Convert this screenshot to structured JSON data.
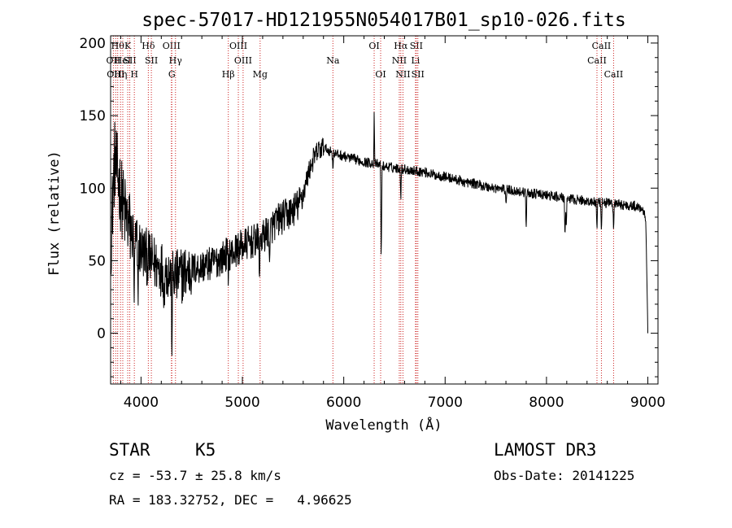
{
  "chart_data": {
    "type": "line",
    "title": "spec-57017-HD121955N054017B01_sp10-026.fits",
    "xlabel": "Wavelength (Å)",
    "ylabel": "Flux (relative)",
    "xlim": [
      3700,
      9100
    ],
    "ylim": [
      -35,
      205
    ],
    "xticks": [
      "4000",
      "5000",
      "6000",
      "7000",
      "8000",
      "9000"
    ],
    "yticks": [
      "0",
      "50",
      "100",
      "150",
      "200"
    ],
    "xtick_values": [
      4000,
      5000,
      6000,
      7000,
      8000,
      9000
    ],
    "ytick_values": [
      0,
      50,
      100,
      150,
      200
    ],
    "line_color": "#000000",
    "marker_color": "#cc2222",
    "continuum": {
      "x": [
        3700,
        3740,
        3780,
        3830,
        3900,
        3950,
        4000,
        4050,
        4100,
        4150,
        4200,
        4250,
        4300,
        4350,
        4400,
        4450,
        4500,
        4550,
        4600,
        4650,
        4700,
        4750,
        4800,
        4850,
        4900,
        4950,
        5000,
        5050,
        5100,
        5150,
        5200,
        5250,
        5300,
        5350,
        5400,
        5450,
        5500,
        5550,
        5600,
        5650,
        5700,
        5750,
        5800,
        5850,
        5900,
        5950,
        6000,
        6100,
        6200,
        6300,
        6400,
        6500,
        6600,
        6700,
        6800,
        6900,
        7000,
        7100,
        7200,
        7300,
        7400,
        7500,
        7600,
        7700,
        7800,
        7900,
        8000,
        8100,
        8200,
        8300,
        8400,
        8500,
        8600,
        8700,
        8800,
        8850,
        8900,
        8950,
        8980,
        9000
      ],
      "y": [
        60,
        120,
        105,
        85,
        70,
        62,
        58,
        53,
        50,
        47,
        45,
        43,
        40,
        38,
        40,
        42,
        44,
        45,
        46,
        47,
        48,
        50,
        52,
        55,
        55,
        58,
        60,
        62,
        63,
        64,
        66,
        70,
        74,
        78,
        80,
        82,
        85,
        88,
        96,
        110,
        120,
        126,
        128,
        126,
        124,
        123,
        122,
        120,
        118,
        117,
        115,
        114,
        113,
        112,
        111,
        109,
        108,
        106,
        104,
        103,
        101,
        100,
        99,
        98,
        97,
        96,
        95,
        94,
        93,
        92,
        91,
        90,
        90,
        89,
        88,
        88,
        87,
        86,
        80,
        0
      ]
    },
    "absorption_features": [
      {
        "x": 3934,
        "depth": 45
      },
      {
        "x": 3969,
        "depth": 40
      },
      {
        "x": 4227,
        "depth": 20
      },
      {
        "x": 4305,
        "depth": 45
      },
      {
        "x": 4861,
        "depth": 15
      },
      {
        "x": 5170,
        "depth": 25
      },
      {
        "x": 5270,
        "depth": 30
      },
      {
        "x": 5893,
        "depth": 10
      },
      {
        "x": 6370,
        "depth": 70
      },
      {
        "x": 6563,
        "depth": 20
      },
      {
        "x": 7600,
        "depth": 10
      },
      {
        "x": 7800,
        "depth": 25
      },
      {
        "x": 8183,
        "depth": 30
      },
      {
        "x": 8195,
        "depth": 25
      },
      {
        "x": 8498,
        "depth": 20
      },
      {
        "x": 8542,
        "depth": 25
      },
      {
        "x": 8662,
        "depth": 20
      }
    ],
    "emission_features": [
      {
        "x": 6300,
        "height": 35
      }
    ],
    "spectral_lines": [
      {
        "x": 3727,
        "label": "OII",
        "row": 1
      },
      {
        "x": 3750,
        "label": "OIII",
        "row": 2
      },
      {
        "x": 3770,
        "label": "Hθ",
        "row": 0
      },
      {
        "x": 3798,
        "label": "Hη",
        "row": 2
      },
      {
        "x": 3820,
        "label": "HeI",
        "row": 1
      },
      {
        "x": 3869,
        "label": "K",
        "row": 0
      },
      {
        "x": 3889,
        "label": "SII",
        "row": 1
      },
      {
        "x": 3934,
        "label": "H",
        "row": 2
      },
      {
        "x": 4072,
        "label": "Hδ",
        "row": 0
      },
      {
        "x": 4102,
        "label": "SII",
        "row": 1
      },
      {
        "x": 4300,
        "label": "OIII",
        "row": 0
      },
      {
        "x": 4304,
        "label": "G",
        "row": 2
      },
      {
        "x": 4340,
        "label": "Hγ",
        "row": 1
      },
      {
        "x": 4861,
        "label": "Hβ",
        "row": 2
      },
      {
        "x": 4960,
        "label": "OIII",
        "row": 0
      },
      {
        "x": 5007,
        "label": "OIII",
        "row": 1
      },
      {
        "x": 5175,
        "label": "Mg",
        "row": 2
      },
      {
        "x": 5893,
        "label": "Na",
        "row": 1
      },
      {
        "x": 6300,
        "label": "OI",
        "row": 0
      },
      {
        "x": 6364,
        "label": "OI",
        "row": 2
      },
      {
        "x": 6548,
        "label": "NII",
        "row": 1
      },
      {
        "x": 6563,
        "label": "Hα",
        "row": 0
      },
      {
        "x": 6584,
        "label": "NII",
        "row": 2
      },
      {
        "x": 6708,
        "label": "Li",
        "row": 1
      },
      {
        "x": 6716,
        "label": "SII",
        "row": 0
      },
      {
        "x": 6731,
        "label": "SII",
        "row": 2
      },
      {
        "x": 8498,
        "label": "CaII",
        "row": 1
      },
      {
        "x": 8542,
        "label": "CaII",
        "row": 0
      },
      {
        "x": 8662,
        "label": "CaII",
        "row": 2
      }
    ]
  },
  "info": {
    "object_class": "STAR",
    "subclass": "K5",
    "survey": "LAMOST DR3",
    "cz": "cz = -53.7 ± 25.8 km/s",
    "obs_date": "Obs-Date: 20141225",
    "radec": "RA = 183.32752, DEC =   4.96625"
  }
}
